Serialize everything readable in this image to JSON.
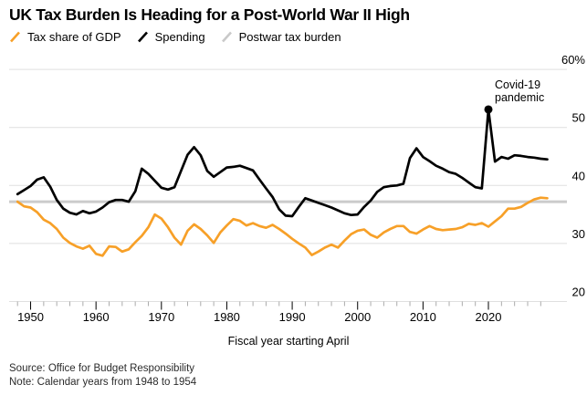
{
  "header": {
    "title": "UK Tax Burden Is Heading for a Post-World War II High"
  },
  "legend": [
    {
      "label": "Tax share of GDP",
      "color": "#F7A028"
    },
    {
      "label": "Spending",
      "color": "#000000"
    },
    {
      "label": "Postwar tax burden",
      "color": "#C9C9C9"
    }
  ],
  "chart_data": {
    "type": "line",
    "title": "UK Tax Burden Is Heading for a Post-World War II High",
    "xlabel": "Fiscal year starting April",
    "ylabel": "",
    "unit": "% of GDP",
    "x_range": [
      1948,
      2029
    ],
    "x_step": 1,
    "ylim": [
      20,
      60
    ],
    "yticks": [
      20,
      30,
      40,
      50,
      60
    ],
    "ytick_labels": [
      "20",
      "30",
      "40",
      "50",
      "60%"
    ],
    "xticks": [
      1950,
      1960,
      1970,
      1980,
      1990,
      2000,
      2010,
      2020
    ],
    "minor_xtick_step": 2,
    "grid": "horizontal",
    "legend_position": "top-left",
    "series": [
      {
        "name": "Tax share of GDP",
        "color": "#F7A028",
        "values": [
          37.2,
          36.4,
          36.2,
          35.4,
          34.1,
          33.5,
          32.5,
          31.0,
          30.1,
          29.5,
          29.1,
          29.6,
          28.2,
          27.9,
          29.5,
          29.4,
          28.6,
          29.0,
          30.2,
          31.3,
          32.8,
          35.0,
          34.3,
          32.8,
          31.0,
          29.8,
          32.2,
          33.3,
          32.5,
          31.4,
          30.1,
          31.9,
          33.1,
          34.2,
          33.9,
          33.1,
          33.5,
          33.0,
          32.7,
          33.2,
          32.5,
          31.7,
          30.8,
          30.0,
          29.3,
          28.0,
          28.6,
          29.3,
          29.8,
          29.3,
          30.5,
          31.6,
          32.2,
          32.4,
          31.5,
          31.0,
          31.9,
          32.5,
          33.0,
          33.0,
          32.0,
          31.7,
          32.4,
          33.0,
          32.5,
          32.3,
          32.4,
          32.5,
          32.8,
          33.4,
          33.2,
          33.5,
          32.9,
          33.8,
          34.7,
          36.0,
          36.0,
          36.3,
          37.0,
          37.6,
          37.9,
          37.8
        ]
      },
      {
        "name": "Spending",
        "color": "#000000",
        "values": [
          38.5,
          39.2,
          39.9,
          41.0,
          41.4,
          39.8,
          37.5,
          36.0,
          35.3,
          35.0,
          35.6,
          35.2,
          35.5,
          36.2,
          37.1,
          37.5,
          37.5,
          37.2,
          39.0,
          42.9,
          42.0,
          40.8,
          39.6,
          39.3,
          39.7,
          42.5,
          45.3,
          46.6,
          45.2,
          42.5,
          41.5,
          42.3,
          43.1,
          43.2,
          43.4,
          43.0,
          42.6,
          41.0,
          39.5,
          38.0,
          35.9,
          34.8,
          34.7,
          36.3,
          37.8,
          37.4,
          37.0,
          36.6,
          36.2,
          35.7,
          35.2,
          34.9,
          35.0,
          36.3,
          37.4,
          38.9,
          39.7,
          39.9,
          40.0,
          40.3,
          44.7,
          46.4,
          44.9,
          44.2,
          43.4,
          42.9,
          42.3,
          42.0,
          41.3,
          40.5,
          39.7,
          39.5,
          53.1,
          44.1,
          44.9,
          44.6,
          45.2,
          45.1,
          44.9,
          44.8,
          44.6,
          44.5
        ]
      }
    ],
    "reference_line": {
      "label": "Postwar tax burden",
      "value": 37.2,
      "color": "#CBCBCB"
    },
    "annotation": {
      "lines": [
        "Covid-19",
        "pandemic"
      ],
      "x": 2020,
      "y": 53.1,
      "marker": "dot"
    }
  },
  "footer": {
    "source": "Source: Office for Budget Responsibility",
    "note": "Note: Calendar years from 1948 to 1954"
  }
}
